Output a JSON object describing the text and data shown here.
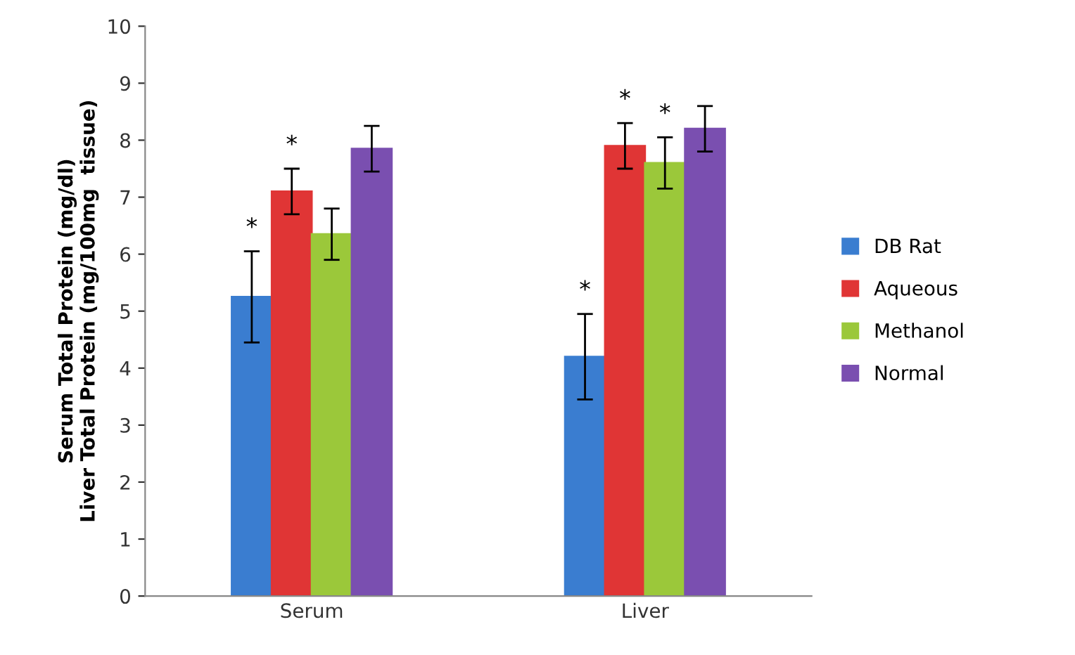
{
  "chart_data": {
    "type": "bar",
    "ylabel": "Serum Total Protein (mg/dl)\nLiver Total Protein (mg/100mg  tissue)",
    "categories": [
      "Serum",
      "Liver"
    ],
    "series": [
      {
        "name": "DB Rat",
        "color": "#3a7dd0",
        "values": [
          5.25,
          4.2
        ],
        "errors": [
          0.8,
          0.75
        ],
        "value_labels": [
          "*",
          "*"
        ]
      },
      {
        "name": "Aqueous",
        "color": "#e03535",
        "values": [
          7.1,
          7.9
        ],
        "errors": [
          0.4,
          0.4
        ],
        "value_labels": [
          "*",
          "*"
        ]
      },
      {
        "name": "Methanol",
        "color": "#9bc83a",
        "values": [
          6.35,
          7.6
        ],
        "errors": [
          0.45,
          0.45
        ],
        "value_labels": [
          null,
          "*"
        ]
      },
      {
        "name": "Normal",
        "color": "#7a4fb0",
        "values": [
          7.85,
          8.2
        ],
        "errors": [
          0.4,
          0.4
        ]
      }
    ],
    "ylim": [
      0,
      10
    ],
    "yticks": [
      0,
      1,
      2,
      3,
      4,
      5,
      6,
      7,
      8,
      9,
      10
    ],
    "grid": false,
    "legend": "right"
  }
}
